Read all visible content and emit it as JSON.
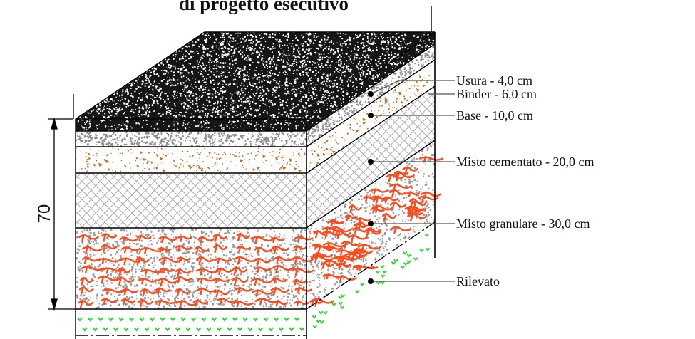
{
  "title": "di progetto esecutivo",
  "dimension": {
    "label": "70"
  },
  "layers": [
    {
      "id": "usura",
      "label": "Usura - 4,0 cm"
    },
    {
      "id": "binder",
      "label": "Binder - 6,0 cm"
    },
    {
      "id": "base",
      "label": "Base - 10,0 cm"
    },
    {
      "id": "misto-cementato",
      "label": "Misto cementato - 20,0 cm"
    },
    {
      "id": "misto-granulare",
      "label": "Misto granulare  - 30,0 cm"
    },
    {
      "id": "rilevato",
      "label": "Rilevato"
    }
  ],
  "colors": {
    "asphalt": "#151515",
    "aggregate_red": "#ff4a1c",
    "base_orange": "#cc6a1a",
    "rilevato_green": "#22dd22",
    "hatch": "#8a8a8a"
  }
}
